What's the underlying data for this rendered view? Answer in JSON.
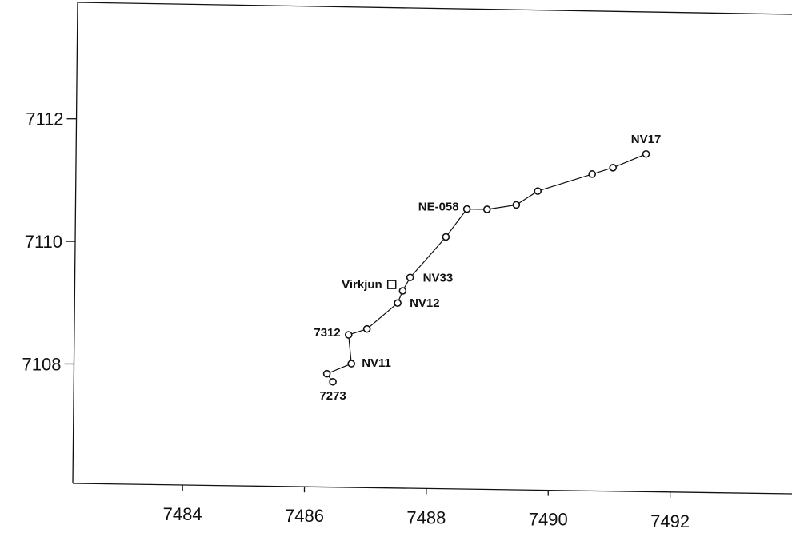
{
  "chart_data": {
    "type": "scatter",
    "title": "",
    "xlabel": "",
    "ylabel": "",
    "xlim": [
      7482.2,
      7494
    ],
    "ylim": [
      7106.05,
      7113.9
    ],
    "x_ticks": [
      7484,
      7486,
      7488,
      7490,
      7492
    ],
    "y_ticks": [
      7108,
      7110,
      7112
    ],
    "grid": false,
    "series": [
      {
        "marker": "circle",
        "connected": true,
        "points": [
          {
            "x": 7486.45,
            "y": 7107.77,
            "label": "7273"
          },
          {
            "x": 7486.35,
            "y": 7107.9,
            "label": ""
          },
          {
            "x": 7486.75,
            "y": 7108.07,
            "label": "NV11"
          },
          {
            "x": 7486.7,
            "y": 7108.54,
            "label": "7312"
          },
          {
            "x": 7487.0,
            "y": 7108.64,
            "label": ""
          },
          {
            "x": 7487.5,
            "y": 7109.07,
            "label": "NV12"
          },
          {
            "x": 7487.58,
            "y": 7109.27,
            "label": ""
          },
          {
            "x": 7487.7,
            "y": 7109.49,
            "label": "NV33"
          },
          {
            "x": 7488.28,
            "y": 7110.16,
            "label": ""
          },
          {
            "x": 7488.62,
            "y": 7110.62,
            "label": "NE-058"
          },
          {
            "x": 7488.95,
            "y": 7110.62,
            "label": ""
          },
          {
            "x": 7489.43,
            "y": 7110.7,
            "label": ""
          },
          {
            "x": 7489.78,
            "y": 7110.93,
            "label": ""
          },
          {
            "x": 7490.67,
            "y": 7111.22,
            "label": ""
          },
          {
            "x": 7491.01,
            "y": 7111.33,
            "label": ""
          },
          {
            "x": 7491.55,
            "y": 7111.56,
            "label": "NV17"
          }
        ]
      },
      {
        "marker": "square",
        "connected": false,
        "points": [
          {
            "x": 7487.4,
            "y": 7109.37,
            "label": "Virkjun"
          }
        ]
      }
    ]
  }
}
